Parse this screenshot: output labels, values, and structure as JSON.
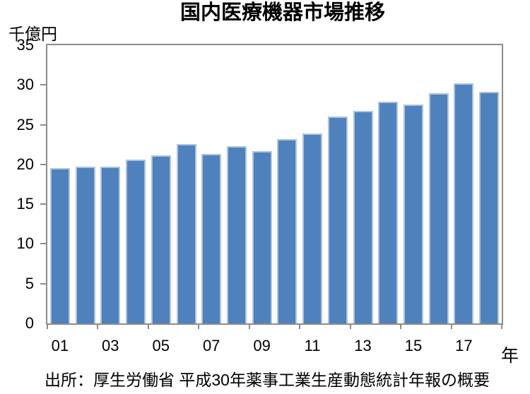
{
  "page": {
    "background": "#ffffff"
  },
  "chart": {
    "title": "国内医療機器市場推移",
    "y_unit_label": "千億円",
    "x_unit_label": "年",
    "source_note": "出所：厚生労働省 平成30年薬事工業生産動態統計年報の概要"
  },
  "colors": {
    "bar_fill": "#4f81bd",
    "bar_border": "#aec4e0",
    "axis": "#8c8c8c",
    "text": "#000000",
    "background": "#ffffff"
  },
  "chart_data": {
    "type": "bar",
    "title": "国内医療機器市場推移",
    "ylabel": "千億円",
    "xlabel": "年",
    "categories": [
      "01",
      "02",
      "03",
      "04",
      "05",
      "06",
      "07",
      "08",
      "09",
      "10",
      "11",
      "12",
      "13",
      "14",
      "15",
      "16",
      "17",
      "18"
    ],
    "values": [
      19.5,
      19.7,
      19.7,
      20.6,
      21.1,
      22.6,
      21.3,
      22.3,
      21.7,
      23.2,
      23.9,
      26.0,
      26.7,
      27.9,
      27.5,
      29.0,
      30.2,
      29.1
    ],
    "ylim": [
      0,
      35
    ],
    "ytick_step": 5,
    "ytick_labels": [
      "0",
      "5",
      "10",
      "15",
      "20",
      "25",
      "30",
      "35"
    ],
    "xtick_labels_shown": [
      "01",
      "03",
      "05",
      "07",
      "09",
      "11",
      "13",
      "15",
      "17"
    ],
    "grid": false,
    "legend": "none",
    "bar_color": "#4f81bd"
  }
}
